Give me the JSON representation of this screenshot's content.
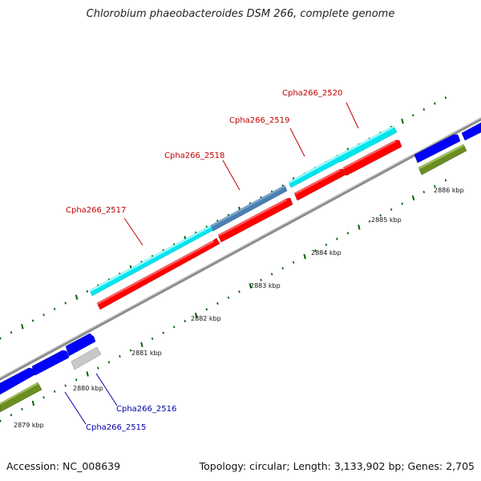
{
  "title": "Chlorobium phaeobacteroides DSM 266, complete genome",
  "accession_text": "Accession: NC_008639",
  "topology_text": "Topology: circular; Length: 3,133,902 bp; Genes: 2,705",
  "colors": {
    "backbone": "#8c8c8c",
    "cyan_gene": "#00ffff",
    "red_gene": "#ff0000",
    "steel_gene": "#4a7fb0",
    "blue_gene": "#0000ff",
    "olive_gene": "#6b8e23",
    "gray_gene": "#c8c8c8",
    "tick": "#006400",
    "label_red": "#c00000",
    "label_blue": "#0000aa"
  },
  "scale": {
    "labels": [
      "2879 kbp",
      "2880 kbp",
      "2881 kbp",
      "2882 kbp",
      "2883 kbp",
      "2884 kbp",
      "2885 kbp",
      "2886 kbp"
    ]
  },
  "gene_labels": [
    {
      "text": "Cpha266_2520",
      "color": "red"
    },
    {
      "text": "Cpha266_2519",
      "color": "red"
    },
    {
      "text": "Cpha266_2518",
      "color": "red"
    },
    {
      "text": "Cpha266_2517",
      "color": "red"
    },
    {
      "text": "Cpha266_2516",
      "color": "blue"
    },
    {
      "text": "Cpha266_2515",
      "color": "blue"
    }
  ]
}
